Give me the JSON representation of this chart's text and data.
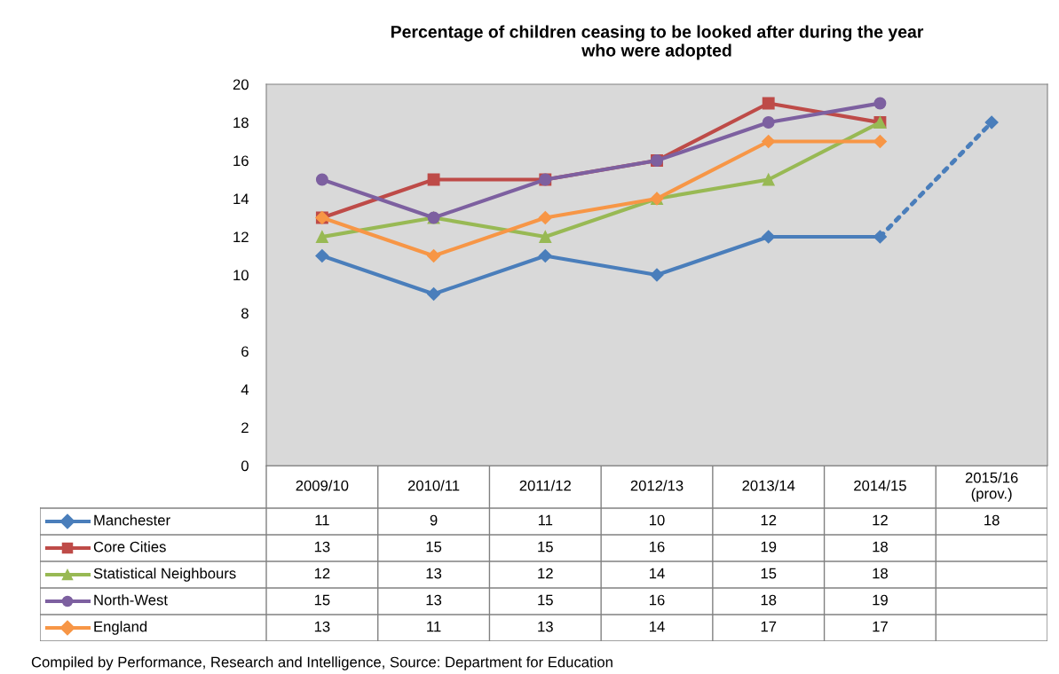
{
  "chart_data": {
    "type": "line",
    "title": "Percentage of children ceasing to be looked after during the year\nwho were adopted",
    "categories": [
      "2009/10",
      "2010/11",
      "2011/12",
      "2012/13",
      "2013/14",
      "2014/15",
      "2015/16\n(prov.)"
    ],
    "series": [
      {
        "name": "Manchester",
        "color": "#4a7ebb",
        "marker": "diamond",
        "values": [
          11,
          9,
          11,
          10,
          12,
          12,
          null
        ],
        "value_labels": [
          "11",
          "9",
          "11",
          "10",
          "12",
          "12",
          "18"
        ]
      },
      {
        "name": "Core Cities",
        "color": "#be4b48",
        "marker": "square",
        "values": [
          13,
          15,
          15,
          16,
          19,
          18,
          null
        ]
      },
      {
        "name": "Statistical Neighbours",
        "color": "#98b954",
        "marker": "triangle",
        "values": [
          12,
          13,
          12,
          14,
          15,
          18,
          null
        ]
      },
      {
        "name": "North-West",
        "color": "#7d60a0",
        "marker": "circle",
        "values": [
          15,
          13,
          15,
          16,
          18,
          19,
          null
        ]
      },
      {
        "name": "England",
        "color": "#f79646",
        "marker": "diamond",
        "values": [
          13,
          11,
          13,
          14,
          17,
          17,
          null
        ]
      },
      {
        "color": "#4a7ebb",
        "marker": "diamond",
        "line_style": "dotted",
        "values": [
          null,
          null,
          null,
          null,
          null,
          12,
          18
        ],
        "value_labels": [
          null,
          null,
          null,
          null,
          null,
          null,
          null
        ]
      }
    ],
    "ylim": [
      0,
      20
    ],
    "yticks": [
      0,
      2,
      4,
      6,
      8,
      10,
      12,
      14,
      16,
      18,
      20
    ],
    "grid": false,
    "legend": "bottom left",
    "data_labels": true,
    "annotations": [
      "Compiled by Performance, Research and Intelligence, Source: Department for Education"
    ]
  }
}
